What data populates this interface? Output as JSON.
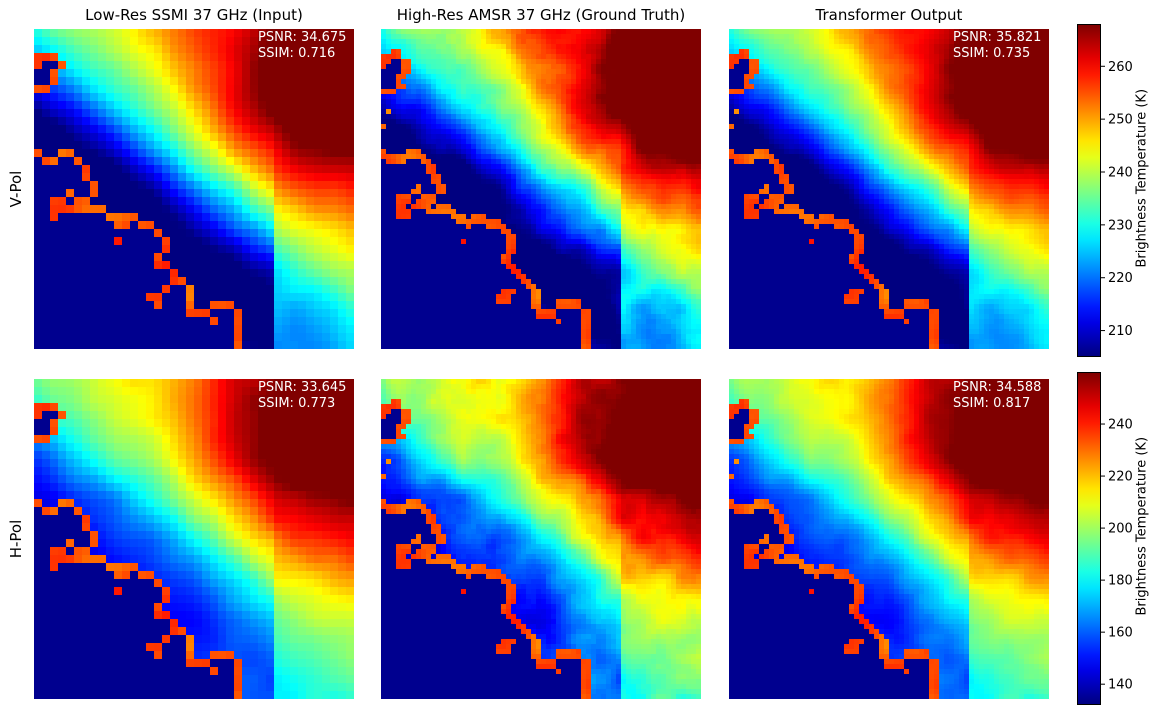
{
  "chart_data": [
    {
      "type": "heatmap",
      "columns": [
        "Low-Res SSMI 37 GHz (Input)",
        "High-Res AMSR 37 GHz (Ground Truth)",
        "Transformer Output"
      ],
      "row_label": "V-Pol",
      "panels": [
        {
          "title": "Low-Res SSMI 37 GHz (Input)",
          "psnr": "PSNR: 34.675",
          "ssim": "SSIM: 0.716"
        },
        {
          "title": "High-Res AMSR 37 GHz (Ground Truth)",
          "psnr": "",
          "ssim": ""
        },
        {
          "title": "Transformer Output",
          "psnr": "PSNR: 35.821",
          "ssim": "SSIM: 0.735"
        }
      ],
      "colorbar": {
        "label": "Brightness Temperature (K)",
        "colormap": "jet",
        "range": [
          205,
          268
        ],
        "ticks": [
          210,
          220,
          230,
          240,
          250,
          260
        ],
        "tick_labels": [
          "210",
          "220",
          "230",
          "240",
          "250",
          "260"
        ]
      }
    },
    {
      "type": "heatmap",
      "columns": [
        "Low-Res SSMI 37 GHz (Input)",
        "High-Res AMSR 37 GHz (Ground Truth)",
        "Transformer Output"
      ],
      "row_label": "H-Pol",
      "panels": [
        {
          "title": "Low-Res SSMI 37 GHz (Input)",
          "psnr": "PSNR: 33.645",
          "ssim": "SSIM: 0.773"
        },
        {
          "title": "High-Res AMSR 37 GHz (Ground Truth)",
          "psnr": "",
          "ssim": ""
        },
        {
          "title": "Transformer Output",
          "psnr": "PSNR: 34.588",
          "ssim": "SSIM: 0.817"
        }
      ],
      "colorbar": {
        "label": "Brightness Temperature (K)",
        "colormap": "jet",
        "range": [
          132,
          260
        ],
        "ticks": [
          140,
          160,
          180,
          200,
          220,
          240
        ],
        "tick_labels": [
          "140",
          "160",
          "180",
          "200",
          "220",
          "240"
        ]
      }
    }
  ],
  "titles": {
    "col1": "Low-Res SSMI 37 GHz (Input)",
    "col2": "High-Res AMSR 37 GHz (Ground Truth)",
    "col3": "Transformer Output"
  },
  "rows": {
    "row1": "V-Pol",
    "row2": "H-Pol"
  },
  "metrics": {
    "r1c1_psnr": "PSNR: 34.675",
    "r1c1_ssim": "SSIM: 0.716",
    "r1c3_psnr": "PSNR: 35.821",
    "r1c3_ssim": "SSIM: 0.735",
    "r2c1_psnr": "PSNR: 33.645",
    "r2c1_ssim": "SSIM: 0.773",
    "r2c3_psnr": "PSNR: 34.588",
    "r2c3_ssim": "SSIM: 0.817"
  },
  "colorbar_label": "Brightness Temperature (K)",
  "colors": {
    "land_mask": "#00008f",
    "text_on_map": "#ffffff"
  }
}
